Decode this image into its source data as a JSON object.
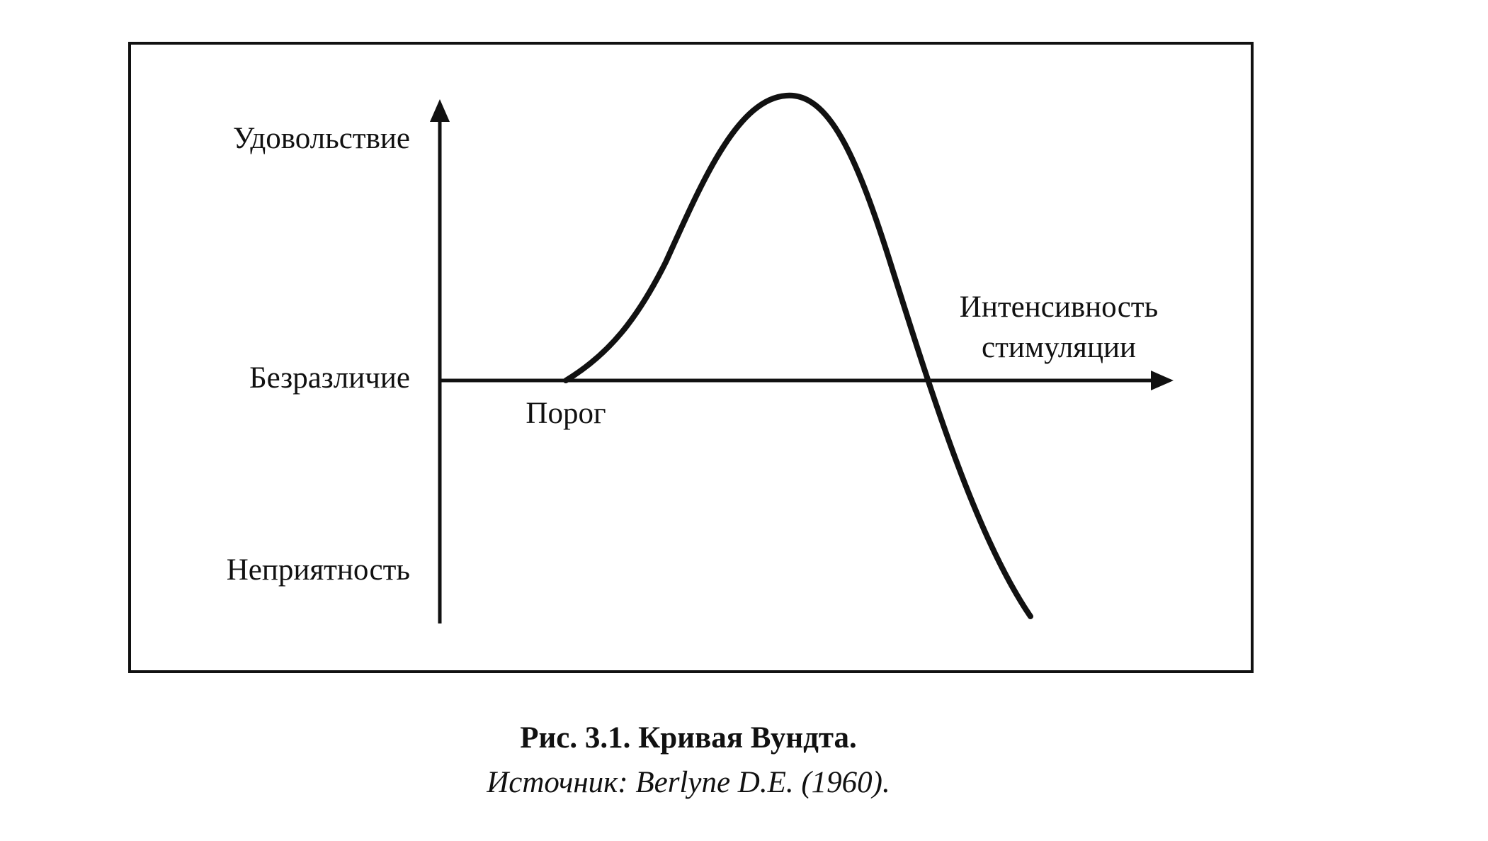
{
  "diagram": {
    "y_levels": [
      "Удовольствие",
      "Безразличие",
      "Неприятность"
    ],
    "x_axis_label": [
      "Интенсивность",
      "стимуляции"
    ],
    "threshold_label": "Порог"
  },
  "caption": {
    "title": "Рис. 3.1. Кривая Вундта.",
    "source": "Источник: Berlyne D.E. (1960)."
  }
}
